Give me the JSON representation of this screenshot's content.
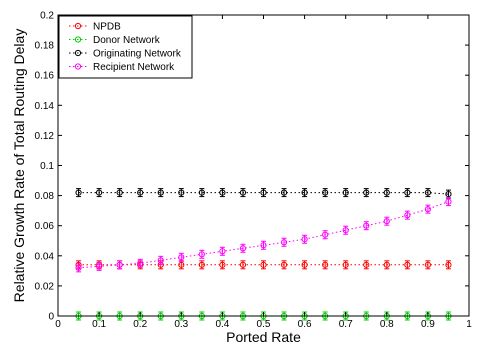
{
  "chart_data": {
    "type": "scatter",
    "xlabel": "Ported Rate",
    "ylabel": "Relative Growth Rate of Total Routing Delay",
    "xlim": [
      0,
      1
    ],
    "ylim": [
      0,
      0.2
    ],
    "x_ticks": [
      "0",
      "0.1",
      "0.2",
      "0.3",
      "0.4",
      "0.5",
      "0.6",
      "0.7",
      "0.8",
      "0.9",
      "1"
    ],
    "y_ticks": [
      "0",
      "0.02",
      "0.04",
      "0.06",
      "0.08",
      "0.1",
      "0.12",
      "0.14",
      "0.16",
      "0.18",
      "0.2"
    ],
    "x_tick_values": [
      0,
      0.1,
      0.2,
      0.3,
      0.4,
      0.5,
      0.6,
      0.7,
      0.8,
      0.9,
      1
    ],
    "y_tick_values": [
      0,
      0.02,
      0.04,
      0.06,
      0.08,
      0.1,
      0.12,
      0.14,
      0.16,
      0.18,
      0.2
    ],
    "legend_position": "top-left",
    "grid": false,
    "x": [
      0.05,
      0.1,
      0.15,
      0.2,
      0.25,
      0.3,
      0.35,
      0.4,
      0.45,
      0.5,
      0.55,
      0.6,
      0.65,
      0.7,
      0.75,
      0.8,
      0.85,
      0.9,
      0.95
    ],
    "series": [
      {
        "name": "NPDB",
        "color": "#ff0000",
        "values": [
          0.034,
          0.034,
          0.034,
          0.034,
          0.034,
          0.034,
          0.034,
          0.034,
          0.034,
          0.034,
          0.034,
          0.034,
          0.034,
          0.034,
          0.034,
          0.034,
          0.034,
          0.034,
          0.034
        ]
      },
      {
        "name": "Donor Network",
        "color": "#00cc00",
        "values": [
          0,
          0,
          0,
          0,
          0,
          0,
          0,
          0,
          0,
          0,
          0,
          0,
          0,
          0,
          0,
          0,
          0,
          0,
          0
        ]
      },
      {
        "name": "Originating Network",
        "color": "#000000",
        "values": [
          0.082,
          0.082,
          0.082,
          0.082,
          0.082,
          0.082,
          0.082,
          0.082,
          0.082,
          0.082,
          0.082,
          0.082,
          0.082,
          0.082,
          0.082,
          0.082,
          0.082,
          0.082,
          0.081
        ]
      },
      {
        "name": "Recipient Network",
        "color": "#ff00ff",
        "values": [
          0.032,
          0.033,
          0.034,
          0.035,
          0.037,
          0.039,
          0.041,
          0.043,
          0.045,
          0.047,
          0.049,
          0.051,
          0.054,
          0.057,
          0.06,
          0.063,
          0.067,
          0.071,
          0.076
        ]
      }
    ]
  }
}
